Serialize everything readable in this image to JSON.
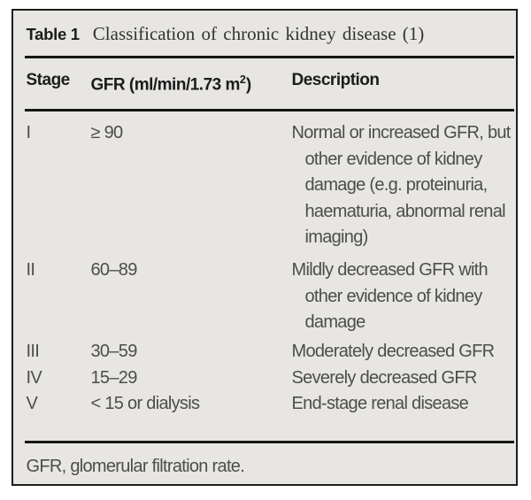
{
  "table": {
    "label": "Table 1",
    "title": "Classification of chronic kidney disease (1)",
    "columns": {
      "stage": "Stage",
      "gfr_prefix": "GFR (ml/min/1.73 m",
      "gfr_sup": "2",
      "gfr_suffix": ")",
      "description": "Description"
    },
    "rows": [
      {
        "stage": "I",
        "gfr": "≥ 90",
        "desc_lines": [
          "Normal or increased GFR, but",
          "other evidence of kidney",
          "damage (e.g. proteinuria,",
          "haematuria, abnormal renal",
          "imaging)"
        ]
      },
      {
        "stage": "II",
        "gfr": "60–89",
        "desc_lines": [
          "Mildly decreased GFR with",
          "other evidence of kidney",
          "damage"
        ]
      },
      {
        "stage": "III",
        "gfr": "30–59",
        "desc_lines": [
          "Moderately decreased GFR"
        ]
      },
      {
        "stage": "IV",
        "gfr": "15–29",
        "desc_lines": [
          "Severely decreased GFR"
        ]
      },
      {
        "stage": "V",
        "gfr": "< 15 or dialysis",
        "desc_lines": [
          "End-stage renal disease"
        ]
      }
    ],
    "footnote": "GFR, glomerular filtration rate."
  },
  "colors": {
    "card_background": "#e7e6e3",
    "border": "#1d1d1d",
    "rule": "#161616",
    "heading_text": "#1c1c1c",
    "body_text": "#4d4d4d",
    "title_text": "#333333"
  }
}
